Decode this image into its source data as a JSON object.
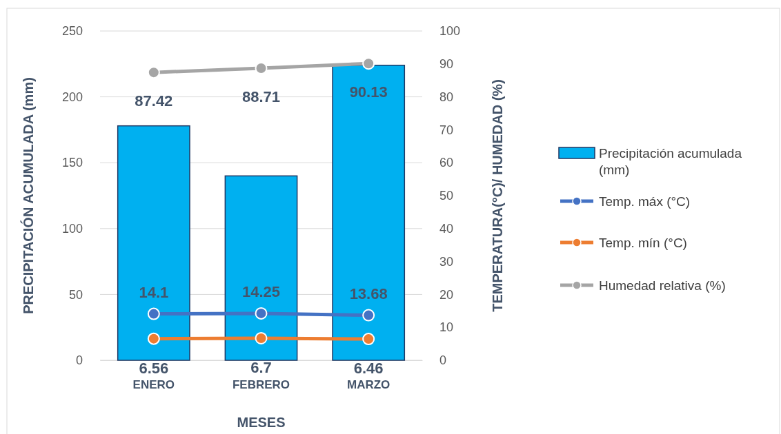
{
  "chart_data": {
    "type": "bar",
    "xlabel": "MESES",
    "ylabel": "PRECIPITACIÓN ACUMULADA (mm)",
    "y2label": "TEMPERATURA(°C)/ HUMEDAD  (%)",
    "categories": [
      "ENERO",
      "FEBRERO",
      "MARZO"
    ],
    "ylim": [
      0,
      250
    ],
    "yticks": [
      0,
      50,
      100,
      150,
      200,
      250
    ],
    "y2lim": [
      0,
      100
    ],
    "y2ticks": [
      0,
      10,
      20,
      30,
      40,
      50,
      60,
      70,
      80,
      90,
      100
    ],
    "grid": "y",
    "legend": "right",
    "marker": "circle",
    "series": [
      {
        "name": "Precipitación acumulada (mm)",
        "color": "#00b0f0",
        "values": [
          178,
          140,
          224
        ]
      },
      {
        "name": "Temp. máx (°C)",
        "type": "line",
        "axis": "y2",
        "color": "#4472c4",
        "values": [
          14.1,
          14.25,
          13.68
        ],
        "value_labels": [
          "14.1",
          "14.25",
          "13.68"
        ]
      },
      {
        "name": "Temp. mín (°C)",
        "type": "line",
        "axis": "y2",
        "color": "#ed7d31",
        "values": [
          6.56,
          6.7,
          6.46
        ],
        "value_labels": [
          "6.56",
          "6.7",
          "6.46"
        ]
      },
      {
        "name": "Humedad relativa (%)",
        "type": "line",
        "axis": "y2",
        "color": "#a5a5a5",
        "values": [
          87.42,
          88.71,
          90.13
        ],
        "value_labels": [
          "87.42",
          "88.71",
          "90.13"
        ]
      }
    ]
  }
}
